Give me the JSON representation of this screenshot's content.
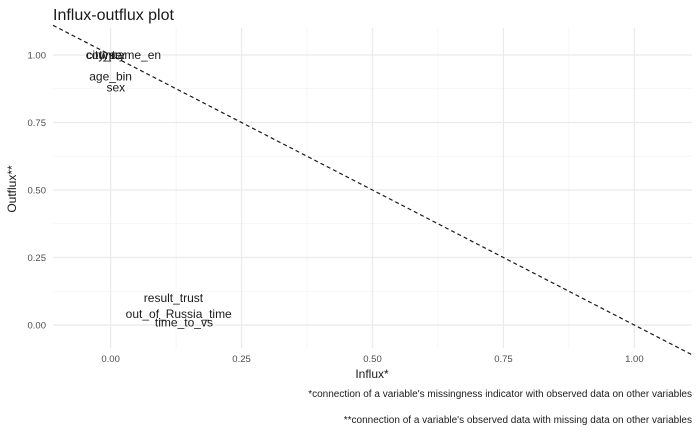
{
  "chart_data": {
    "type": "scatter",
    "title": "Influx-outflux plot",
    "xlabel": "Influx*",
    "ylabel": "Outflux**",
    "xlim": [
      -0.11,
      1.11
    ],
    "ylim": [
      -0.085,
      1.1
    ],
    "x_ticks": [
      0.0,
      0.25,
      0.5,
      0.75,
      1.0
    ],
    "x_tick_labels": [
      "0.00",
      "0.25",
      "0.50",
      "0.75",
      "1.00"
    ],
    "y_ticks": [
      0.0,
      0.25,
      0.5,
      0.75,
      1.0
    ],
    "y_tick_labels": [
      "0.00",
      "0.25",
      "0.50",
      "0.75",
      "1.00"
    ],
    "grid": true,
    "reference_line": {
      "style": "dashed",
      "intercept": 1.0,
      "slope": -1.0
    },
    "points": [
      {
        "label": "country",
        "x": -0.01,
        "y": 1.0
      },
      {
        "label": "type",
        "x": 0.0,
        "y": 1.0
      },
      {
        "label": "city_name_en",
        "x": 0.025,
        "y": 1.0
      },
      {
        "label": "age_bin",
        "x": 0.0,
        "y": 0.92
      },
      {
        "label": "sex",
        "x": 0.01,
        "y": 0.88
      },
      {
        "label": "result_trust",
        "x": 0.12,
        "y": 0.1
      },
      {
        "label": "out_of_Russia_time",
        "x": 0.13,
        "y": 0.04
      },
      {
        "label": "time_to_vs",
        "x": 0.14,
        "y": 0.01
      }
    ],
    "captions": [
      "*connection of a variable's missingness indicator with observed data on other variables",
      "**connection of a variable's observed data with missing data on other variables"
    ]
  }
}
